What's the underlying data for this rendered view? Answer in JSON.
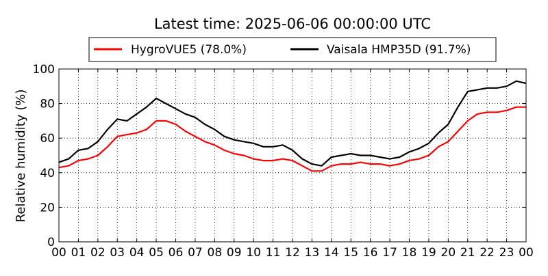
{
  "chart_data": {
    "type": "line",
    "title": "Latest time: 2025-06-06 00:00:00 UTC",
    "xlabel": "",
    "ylabel": "Relative humidity (%)",
    "xlim": [
      0,
      24
    ],
    "ylim": [
      0,
      100
    ],
    "x_tick_labels": [
      "00",
      "01",
      "02",
      "03",
      "04",
      "05",
      "06",
      "07",
      "08",
      "09",
      "10",
      "11",
      "12",
      "13",
      "14",
      "15",
      "16",
      "17",
      "18",
      "19",
      "20",
      "21",
      "22",
      "23",
      "00"
    ],
    "y_ticks": [
      0,
      20,
      40,
      60,
      80,
      100
    ],
    "grid": true,
    "legend_position": "top-center",
    "series": [
      {
        "name": "HygroVUE5 (78.0%)",
        "color": "#ff0000",
        "x": [
          0,
          0.5,
          1,
          1.5,
          2,
          2.5,
          3,
          3.5,
          4,
          4.5,
          5,
          5.5,
          6,
          6.5,
          7,
          7.5,
          8,
          8.5,
          9,
          9.5,
          10,
          10.5,
          11,
          11.5,
          12,
          12.5,
          13,
          13.5,
          14,
          14.5,
          15,
          15.5,
          16,
          16.5,
          17,
          17.5,
          18,
          18.5,
          19,
          19.5,
          20,
          20.5,
          21,
          21.5,
          22,
          22.5,
          23,
          23.5,
          24
        ],
        "values": [
          43,
          44,
          47,
          48,
          50,
          55,
          61,
          62,
          63,
          65,
          70,
          70,
          68,
          64,
          61,
          58,
          56,
          53,
          51,
          50,
          48,
          47,
          47,
          48,
          47,
          44,
          41,
          41,
          44,
          45,
          45,
          46,
          45,
          45,
          44,
          45,
          47,
          48,
          50,
          55,
          58,
          64,
          70,
          74,
          75,
          75,
          76,
          78,
          78
        ]
      },
      {
        "name": "Vaisala HMP35D (91.7%)",
        "color": "#000000",
        "x": [
          0,
          0.5,
          1,
          1.5,
          2,
          2.5,
          3,
          3.5,
          4,
          4.5,
          5,
          5.5,
          6,
          6.5,
          7,
          7.5,
          8,
          8.5,
          9,
          9.5,
          10,
          10.5,
          11,
          11.5,
          12,
          12.5,
          13,
          13.5,
          14,
          14.5,
          15,
          15.5,
          16,
          16.5,
          17,
          17.5,
          18,
          18.5,
          19,
          19.5,
          20,
          20.5,
          21,
          21.5,
          22,
          22.5,
          23,
          23.5,
          24
        ],
        "values": [
          46,
          48,
          53,
          54,
          58,
          65,
          71,
          70,
          74,
          78,
          83,
          80,
          77,
          74,
          72,
          68,
          65,
          61,
          59,
          58,
          57,
          55,
          55,
          56,
          53,
          48,
          45,
          44,
          49,
          50,
          51,
          50,
          50,
          49,
          48,
          49,
          52,
          54,
          57,
          63,
          68,
          78,
          87,
          88,
          89,
          89,
          90,
          93,
          91.7
        ]
      }
    ]
  }
}
